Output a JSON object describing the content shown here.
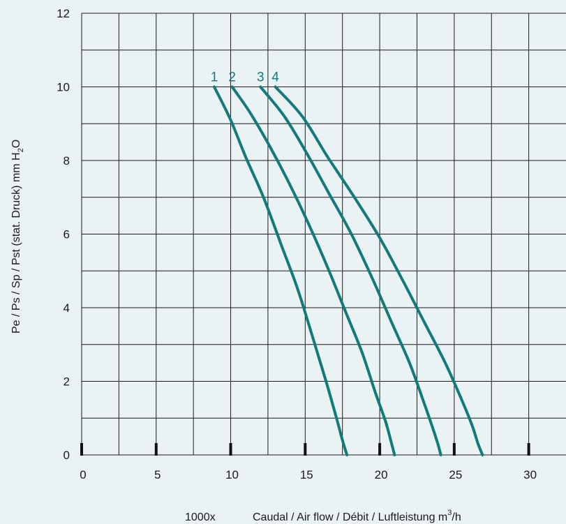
{
  "chart_data": {
    "type": "line",
    "title": "",
    "xlabel_prefix": "1000x",
    "xlabel": "Caudal / Air flow / Débit / Luftleistung m",
    "xlabel_sup": "3",
    "xlabel_suffix": "/h",
    "ylabel": "Pe / Ps / Sp / Pst (stat. Druck) mm H",
    "ylabel_sub": "2",
    "ylabel_suffix": "O",
    "xlim": [
      0,
      32.5
    ],
    "ylim": [
      0,
      12
    ],
    "x_ticks": [
      0,
      5,
      10,
      15,
      20,
      25,
      30
    ],
    "x_tick_labels": [
      "0",
      "5",
      "10",
      "15",
      "20",
      "25",
      "30"
    ],
    "y_ticks": [
      0,
      2,
      4,
      6,
      8,
      10,
      12
    ],
    "y_tick_labels": [
      "0",
      "2",
      "4",
      "6",
      "8",
      "10",
      "12"
    ],
    "grid": true,
    "line_color": "#127a7a",
    "series": [
      {
        "name": "1",
        "x": [
          8.9,
          10.0,
          11.0,
          12.2,
          13.4,
          14.5,
          15.5,
          16.4,
          17.1,
          17.5,
          17.8
        ],
        "y": [
          10,
          9.1,
          8.1,
          7.0,
          5.7,
          4.5,
          3.2,
          2.0,
          1.0,
          0.4,
          0
        ]
      },
      {
        "name": "2",
        "x": [
          10.1,
          11.3,
          12.6,
          13.9,
          15.2,
          16.5,
          17.7,
          18.8,
          19.7,
          20.4,
          20.8,
          21.0
        ],
        "y": [
          10,
          9.3,
          8.4,
          7.4,
          6.3,
          5.1,
          3.9,
          2.8,
          1.7,
          0.9,
          0.3,
          0
        ]
      },
      {
        "name": "3",
        "x": [
          12.0,
          13.6,
          15.1,
          16.6,
          18.1,
          19.5,
          20.8,
          22.0,
          22.9,
          23.5,
          23.9,
          24.1
        ],
        "y": [
          10,
          9.2,
          8.2,
          7.1,
          6.0,
          4.8,
          3.6,
          2.5,
          1.5,
          0.8,
          0.3,
          0
        ]
      },
      {
        "name": "4",
        "x": [
          13.0,
          14.8,
          16.5,
          18.3,
          20.0,
          21.6,
          23.0,
          24.4,
          25.5,
          26.2,
          26.6,
          26.9
        ],
        "y": [
          10,
          9.2,
          8.1,
          7.0,
          5.9,
          4.7,
          3.6,
          2.5,
          1.5,
          0.8,
          0.3,
          0
        ]
      }
    ]
  }
}
